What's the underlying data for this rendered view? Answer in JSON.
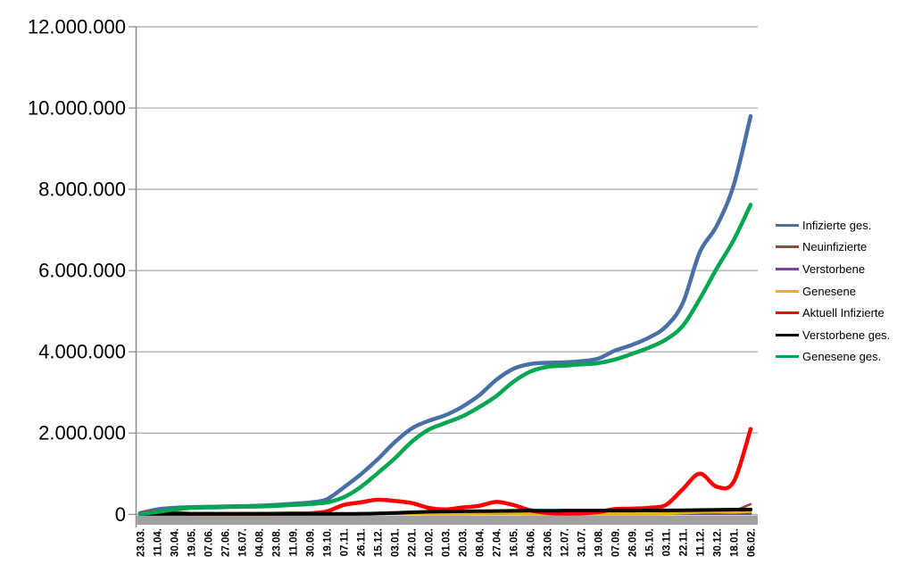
{
  "chart_data": {
    "type": "line",
    "title": "",
    "xlabel": "",
    "ylabel": "",
    "ylim": [
      0,
      12000000
    ],
    "grid": "horizontal",
    "legend_position": "right",
    "y_tick_labels": [
      "0",
      "2.000.000",
      "4.000.000",
      "6.000.000",
      "8.000.000",
      "10.000.000",
      "12.000.000"
    ],
    "y_tick_values": [
      0,
      2000000,
      4000000,
      6000000,
      8000000,
      10000000,
      12000000
    ],
    "x_tick_labels": [
      "23.03.",
      "11.04.",
      "30.04.",
      "19.05.",
      "07.06.",
      "27.06.",
      "16.07.",
      "04.08.",
      "23.08.",
      "11.09.",
      "30.09.",
      "19.10.",
      "07.11.",
      "26.11.",
      "15.12.",
      "03.01.",
      "22.01.",
      "10.02.",
      "01.03.",
      "20.03.",
      "08.04.",
      "27.04.",
      "16.05.",
      "04.06.",
      "23.06.",
      "12.07.",
      "31.07.",
      "19.08.",
      "07.09.",
      "26.09.",
      "15.10.",
      "03.11.",
      "22.11.",
      "11.12.",
      "30.12.",
      "18.01.",
      "06.02."
    ],
    "axis_colors": {
      "gridline": "#a6a6a6",
      "axis_line": "#8a8a8a",
      "baseline_bar": "#a0a0a0",
      "label_text": "#000000"
    },
    "series": [
      {
        "name": "Infizierte ges.",
        "color": "#4a6fa5",
        "stroke_width": 4.5,
        "values": [
          30000,
          120000,
          160000,
          178000,
          185000,
          194000,
          201000,
          212000,
          233000,
          260000,
          290000,
          370000,
          660000,
          980000,
          1350000,
          1770000,
          2110000,
          2300000,
          2440000,
          2650000,
          2930000,
          3310000,
          3580000,
          3700000,
          3730000,
          3740000,
          3770000,
          3830000,
          4030000,
          4170000,
          4350000,
          4620000,
          5200000,
          6450000,
          7100000,
          8100000,
          9800000
        ]
      },
      {
        "name": "Neuinfizierte",
        "color": "#9c4541",
        "stroke_width": 2.5,
        "values": [
          4000,
          4000,
          1500,
          700,
          300,
          500,
          400,
          900,
          1500,
          1500,
          2000,
          7000,
          20000,
          22000,
          27000,
          22000,
          17000,
          8000,
          9000,
          16000,
          20000,
          23000,
          12000,
          3000,
          1000,
          700,
          2000,
          8000,
          12000,
          8000,
          12000,
          25000,
          50000,
          55000,
          40000,
          90000,
          250000
        ]
      },
      {
        "name": "Verstorbene",
        "color": "#7345a0",
        "stroke_width": 2.5,
        "values": [
          100,
          250,
          200,
          100,
          50,
          30,
          30,
          30,
          30,
          30,
          40,
          80,
          150,
          300,
          600,
          900,
          800,
          600,
          400,
          250,
          250,
          250,
          200,
          100,
          50,
          30,
          30,
          50,
          80,
          80,
          100,
          150,
          250,
          350,
          400,
          250,
          200
        ]
      },
      {
        "name": "Genesene",
        "color": "#f2af00",
        "stroke_width": 3,
        "values": [
          2000,
          4000,
          3000,
          2000,
          1000,
          800,
          700,
          1000,
          1500,
          1500,
          2000,
          4000,
          13000,
          19000,
          22000,
          25000,
          20000,
          12000,
          8000,
          12000,
          17000,
          21000,
          18000,
          7000,
          2000,
          1500,
          2500,
          6000,
          10000,
          9000,
          10000,
          16000,
          30000,
          50000,
          55000,
          48000,
          65000
        ]
      },
      {
        "name": "Aktuell Infizierte",
        "color": "#fe0000",
        "stroke_width": 4.5,
        "values": [
          22000,
          58000,
          35000,
          14000,
          7000,
          6000,
          6000,
          9000,
          17000,
          21000,
          26000,
          70000,
          230000,
          295000,
          360000,
          330000,
          280000,
          160000,
          120000,
          170000,
          210000,
          305000,
          230000,
          100000,
          35000,
          20000,
          25000,
          55000,
          130000,
          140000,
          160000,
          230000,
          620000,
          1000000,
          680000,
          800000,
          2100000
        ]
      },
      {
        "name": "Verstorbene ges.",
        "color": "#000000",
        "stroke_width": 4,
        "values": [
          200,
          2800,
          6300,
          8000,
          8700,
          9000,
          9100,
          9200,
          9300,
          9400,
          9500,
          9800,
          11300,
          15000,
          23400,
          34500,
          51000,
          63200,
          70000,
          74500,
          77800,
          81800,
          86200,
          88900,
          90300,
          91200,
          91700,
          92000,
          92400,
          93200,
          94500,
          96100,
          99500,
          104600,
          111300,
          116000,
          118700
        ]
      },
      {
        "name": "Genesene ges.",
        "color": "#00a650",
        "stroke_width": 4.5,
        "values": [
          8000,
          57000,
          120000,
          158000,
          170000,
          179000,
          186000,
          194000,
          207000,
          230000,
          255000,
          290000,
          420000,
          670000,
          1010000,
          1370000,
          1780000,
          2080000,
          2250000,
          2410000,
          2640000,
          2910000,
          3260000,
          3510000,
          3630000,
          3660000,
          3690000,
          3720000,
          3810000,
          3950000,
          4100000,
          4300000,
          4640000,
          5300000,
          6050000,
          6750000,
          7620000
        ]
      }
    ]
  }
}
